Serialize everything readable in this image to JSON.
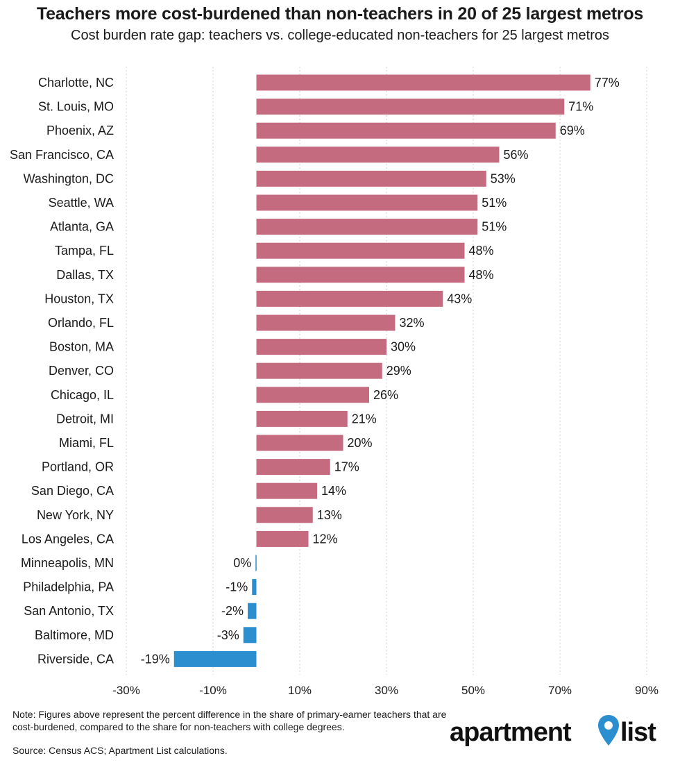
{
  "header": {
    "title": "Teachers more cost-burdened than non-teachers in 20 of 25 largest metros",
    "subtitle": "Cost burden rate gap: teachers vs. college-educated non-teachers for 25 largest metros"
  },
  "footer": {
    "note": "Note: Figures above represent the percent difference in the share of primary-earner teachers that are cost-burdened, compared to the share for non-teachers with college degrees.",
    "source": "Source: Census ACS; Apartment List calculations."
  },
  "logo": {
    "word_left": "apartment",
    "word_right": "list",
    "pin_color": "#2b8fcf"
  },
  "colors": {
    "positive": "#c46b80",
    "negative": "#2b8fcf",
    "grid": "#d0d0d0"
  },
  "chart_data": {
    "type": "bar",
    "orientation": "horizontal",
    "title": "Teachers more cost-burdened than non-teachers in 20 of 25 largest metros",
    "subtitle": "Cost burden rate gap: teachers vs. college-educated non-teachers for 25 largest metros",
    "xlim": [
      -30,
      90
    ],
    "x_ticks": [
      -30,
      -10,
      10,
      30,
      50,
      70,
      90
    ],
    "x_tick_labels": [
      "-30%",
      "-10%",
      "10%",
      "30%",
      "50%",
      "70%",
      "90%"
    ],
    "grid": "vertical dotted",
    "categories": [
      "Charlotte, NC",
      "St. Louis, MO",
      "Phoenix, AZ",
      "San Francisco, CA",
      "Washington, DC",
      "Seattle, WA",
      "Atlanta, GA",
      "Tampa, FL",
      "Dallas, TX",
      "Houston, TX",
      "Orlando, FL",
      "Boston, MA",
      "Denver, CO",
      "Chicago, IL",
      "Detroit, MI",
      "Miami, FL",
      "Portland, OR",
      "San Diego, CA",
      "New York, NY",
      "Los Angeles, CA",
      "Minneapolis, MN",
      "Philadelphia, PA",
      "San Antonio, TX",
      "Baltimore, MD",
      "Riverside, CA"
    ],
    "values": [
      77,
      71,
      69,
      56,
      53,
      51,
      51,
      48,
      48,
      43,
      32,
      30,
      29,
      26,
      21,
      20,
      17,
      14,
      13,
      12,
      -0.2,
      -1,
      -2,
      -3,
      -19
    ],
    "value_labels": [
      "77%",
      "71%",
      "69%",
      "56%",
      "53%",
      "51%",
      "51%",
      "48%",
      "48%",
      "43%",
      "32%",
      "30%",
      "29%",
      "26%",
      "21%",
      "20%",
      "17%",
      "14%",
      "13%",
      "12%",
      "0%",
      "-1%",
      "-2%",
      "-3%",
      "-19%"
    ]
  }
}
